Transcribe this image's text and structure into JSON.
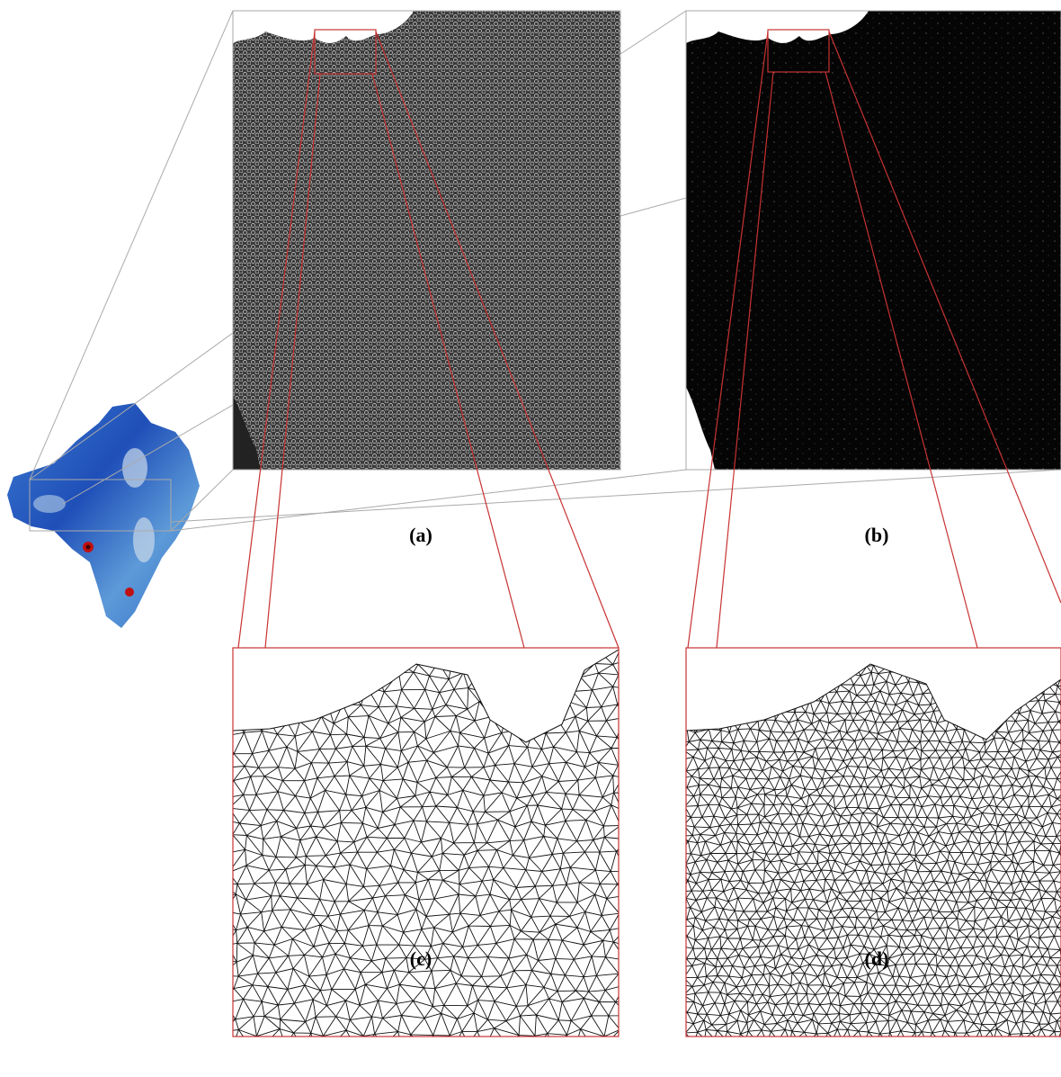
{
  "panels": {
    "a": "(a)",
    "b": "(b)",
    "c": "(c)",
    "d": "(d)"
  }
}
